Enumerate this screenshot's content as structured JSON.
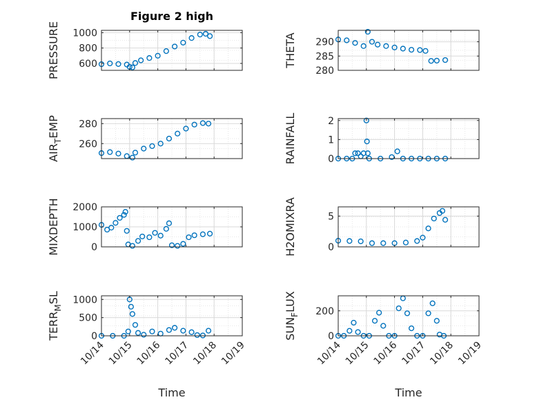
{
  "figure": {
    "title": "Figure 2 high"
  },
  "colors": {
    "marker": "#0072BD",
    "grid": "#d9d9d9",
    "axis": "#262626"
  },
  "chart_data": [
    {
      "type": "scatter",
      "ylabel": "PRESSURE",
      "grid": true,
      "title": "Figure 2 high",
      "xlim": [
        0,
        5
      ],
      "xticks": [
        0,
        1,
        2,
        3,
        4,
        5
      ],
      "xticklabels": [
        "10/14",
        "10/15",
        "10/16",
        "10/17",
        "10/18",
        "10/19"
      ],
      "ylim": [
        510,
        1030
      ],
      "yticks": [
        600,
        800,
        1000
      ],
      "points": [
        [
          0,
          590
        ],
        [
          0.3,
          600
        ],
        [
          0.6,
          592
        ],
        [
          0.9,
          585
        ],
        [
          1.0,
          555
        ],
        [
          1.1,
          548
        ],
        [
          1.2,
          605
        ],
        [
          1.4,
          640
        ],
        [
          1.7,
          670
        ],
        [
          2.0,
          700
        ],
        [
          2.3,
          760
        ],
        [
          2.6,
          820
        ],
        [
          2.9,
          870
        ],
        [
          3.2,
          930
        ],
        [
          3.5,
          975
        ],
        [
          3.7,
          985
        ],
        [
          3.85,
          955
        ]
      ]
    },
    {
      "type": "scatter",
      "ylabel": "THETA",
      "grid": true,
      "xlim": [
        0,
        5
      ],
      "xticks": [
        0,
        1,
        2,
        3,
        4,
        5
      ],
      "xticklabels": [
        "10/14",
        "10/15",
        "10/16",
        "10/17",
        "10/18",
        "10/19"
      ],
      "ylim": [
        280,
        294
      ],
      "yticks": [
        280,
        285,
        290
      ],
      "points": [
        [
          0,
          290.8
        ],
        [
          0.3,
          290.5
        ],
        [
          0.6,
          289.6
        ],
        [
          0.9,
          288.5
        ],
        [
          1.05,
          293.5
        ],
        [
          1.2,
          290
        ],
        [
          1.4,
          289
        ],
        [
          1.7,
          288.5
        ],
        [
          2.0,
          288
        ],
        [
          2.3,
          287.6
        ],
        [
          2.6,
          287.2
        ],
        [
          2.9,
          287.1
        ],
        [
          3.1,
          286.8
        ],
        [
          3.3,
          283.3
        ],
        [
          3.5,
          283.4
        ],
        [
          3.8,
          283.6
        ]
      ]
    },
    {
      "type": "scatter",
      "ylabel": "AIR",
      "ylabel_sub": "T",
      "ylabel_end": "EMP",
      "grid": true,
      "xlim": [
        0,
        5
      ],
      "xticks": [
        0,
        1,
        2,
        3,
        4,
        5
      ],
      "xticklabels": [
        "10/14",
        "10/15",
        "10/16",
        "10/17",
        "10/18",
        "10/19"
      ],
      "ylim": [
        245,
        285
      ],
      "yticks": [
        260,
        280
      ],
      "points": [
        [
          0,
          250.5
        ],
        [
          0.3,
          251.5
        ],
        [
          0.6,
          250
        ],
        [
          0.9,
          247.5
        ],
        [
          1.1,
          246
        ],
        [
          1.2,
          251
        ],
        [
          1.5,
          255
        ],
        [
          1.8,
          257.5
        ],
        [
          2.1,
          260
        ],
        [
          2.4,
          265
        ],
        [
          2.7,
          270
        ],
        [
          3.0,
          275
        ],
        [
          3.3,
          279
        ],
        [
          3.6,
          280.5
        ],
        [
          3.8,
          280
        ]
      ]
    },
    {
      "type": "scatter",
      "ylabel": "RAINFALL",
      "grid": true,
      "xlim": [
        0,
        5
      ],
      "xticks": [
        0,
        1,
        2,
        3,
        4,
        5
      ],
      "xticklabels": [
        "10/14",
        "10/15",
        "10/16",
        "10/17",
        "10/18",
        "10/19"
      ],
      "ylim": [
        0,
        2.1
      ],
      "yticks": [
        0,
        1,
        2
      ],
      "points": [
        [
          0,
          0
        ],
        [
          0.3,
          0
        ],
        [
          0.5,
          0
        ],
        [
          0.6,
          0.28
        ],
        [
          0.7,
          0.28
        ],
        [
          0.8,
          0.12
        ],
        [
          0.9,
          0.28
        ],
        [
          1.0,
          2.0
        ],
        [
          1.02,
          0.9
        ],
        [
          1.05,
          0.28
        ],
        [
          1.1,
          0
        ],
        [
          1.5,
          0
        ],
        [
          1.9,
          0.08
        ],
        [
          2.1,
          0.38
        ],
        [
          2.3,
          0
        ],
        [
          2.6,
          0
        ],
        [
          2.9,
          0
        ],
        [
          3.2,
          0
        ],
        [
          3.5,
          0
        ],
        [
          3.8,
          0
        ]
      ]
    },
    {
      "type": "scatter",
      "ylabel": "MIXDEPTH",
      "grid": true,
      "xlim": [
        0,
        5
      ],
      "xticks": [
        0,
        1,
        2,
        3,
        4,
        5
      ],
      "xticklabels": [
        "10/14",
        "10/15",
        "10/16",
        "10/17",
        "10/18",
        "10/19"
      ],
      "ylim": [
        0,
        2000
      ],
      "yticks": [
        0,
        1000,
        2000
      ],
      "points": [
        [
          0,
          1100
        ],
        [
          0.2,
          860
        ],
        [
          0.35,
          960
        ],
        [
          0.5,
          1200
        ],
        [
          0.65,
          1450
        ],
        [
          0.8,
          1600
        ],
        [
          0.85,
          1750
        ],
        [
          0.9,
          800
        ],
        [
          0.95,
          120
        ],
        [
          1.1,
          50
        ],
        [
          1.3,
          300
        ],
        [
          1.45,
          520
        ],
        [
          1.7,
          480
        ],
        [
          1.9,
          700
        ],
        [
          2.1,
          560
        ],
        [
          2.3,
          900
        ],
        [
          2.4,
          1180
        ],
        [
          2.5,
          80
        ],
        [
          2.7,
          50
        ],
        [
          2.9,
          150
        ],
        [
          3.1,
          480
        ],
        [
          3.3,
          580
        ],
        [
          3.6,
          630
        ],
        [
          3.85,
          660
        ]
      ]
    },
    {
      "type": "scatter",
      "ylabel": "H2OMIXRA",
      "grid": true,
      "xlim": [
        0,
        5
      ],
      "xticks": [
        0,
        1,
        2,
        3,
        4,
        5
      ],
      "xticklabels": [
        "10/14",
        "10/15",
        "10/16",
        "10/17",
        "10/18",
        "10/19"
      ],
      "ylim": [
        0,
        6.5
      ],
      "yticks": [
        0,
        5
      ],
      "points": [
        [
          0,
          1
        ],
        [
          0.4,
          0.95
        ],
        [
          0.8,
          0.9
        ],
        [
          1.2,
          0.6
        ],
        [
          1.6,
          0.6
        ],
        [
          2.0,
          0.6
        ],
        [
          2.4,
          0.7
        ],
        [
          2.8,
          0.95
        ],
        [
          3.0,
          1.5
        ],
        [
          3.2,
          3
        ],
        [
          3.4,
          4.6
        ],
        [
          3.6,
          5.5
        ],
        [
          3.7,
          5.85
        ],
        [
          3.8,
          4.4
        ]
      ]
    },
    {
      "type": "scatter",
      "ylabel": "TERR",
      "ylabel_sub": "M",
      "ylabel_end": "SL",
      "grid": true,
      "xlabel": "Time",
      "xlim": [
        0,
        5
      ],
      "xticks": [
        0,
        1,
        2,
        3,
        4,
        5
      ],
      "xticklabels": [
        "10/14",
        "10/15",
        "10/16",
        "10/17",
        "10/18",
        "10/19"
      ],
      "ylim": [
        0,
        1100
      ],
      "yticks": [
        0,
        500,
        1000
      ],
      "points": [
        [
          0,
          0
        ],
        [
          0.4,
          0
        ],
        [
          0.8,
          0
        ],
        [
          0.95,
          120
        ],
        [
          1.0,
          1000
        ],
        [
          1.05,
          800
        ],
        [
          1.1,
          600
        ],
        [
          1.2,
          300
        ],
        [
          1.3,
          80
        ],
        [
          1.5,
          30
        ],
        [
          1.8,
          120
        ],
        [
          2.1,
          60
        ],
        [
          2.4,
          160
        ],
        [
          2.6,
          220
        ],
        [
          2.9,
          140
        ],
        [
          3.2,
          100
        ],
        [
          3.4,
          20
        ],
        [
          3.6,
          10
        ],
        [
          3.8,
          140
        ]
      ]
    },
    {
      "type": "scatter",
      "ylabel": "SUN",
      "ylabel_sub": "F",
      "ylabel_end": "LUX",
      "grid": true,
      "xlabel": "Time",
      "xlim": [
        0,
        5
      ],
      "xticks": [
        0,
        1,
        2,
        3,
        4,
        5
      ],
      "xticklabels": [
        "10/14",
        "10/15",
        "10/16",
        "10/17",
        "10/18",
        "10/19"
      ],
      "ylim": [
        0,
        320
      ],
      "yticks": [
        0,
        200
      ],
      "points": [
        [
          0,
          0
        ],
        [
          0.2,
          0
        ],
        [
          0.4,
          40
        ],
        [
          0.55,
          105
        ],
        [
          0.7,
          30
        ],
        [
          0.9,
          0
        ],
        [
          1.1,
          0
        ],
        [
          1.3,
          120
        ],
        [
          1.45,
          185
        ],
        [
          1.6,
          80
        ],
        [
          1.8,
          0
        ],
        [
          2.0,
          0
        ],
        [
          2.15,
          220
        ],
        [
          2.3,
          300
        ],
        [
          2.45,
          180
        ],
        [
          2.6,
          60
        ],
        [
          2.8,
          0
        ],
        [
          3.0,
          0
        ],
        [
          3.2,
          180
        ],
        [
          3.35,
          260
        ],
        [
          3.5,
          120
        ],
        [
          3.6,
          10
        ],
        [
          3.75,
          0
        ]
      ]
    }
  ]
}
